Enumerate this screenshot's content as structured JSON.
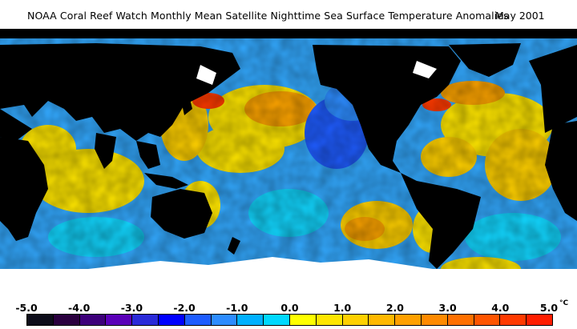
{
  "title": {
    "text": "NOAA Coral Reef Watch Monthly Mean Satellite Nighttime Sea Surface Temperature Anomalies",
    "date": "May 2001"
  },
  "scale": {
    "labels": [
      "-5.0",
      "-4.0",
      "-3.0",
      "-2.0",
      "-1.0",
      "0.0",
      "1.0",
      "2.0",
      "3.0",
      "4.0",
      "5.0"
    ],
    "unit": "°C",
    "colors": [
      "#0d0d1a",
      "#2a003f",
      "#3d007a",
      "#5a00b8",
      "#2b2bd8",
      "#0000ff",
      "#1e5cff",
      "#2d8cff",
      "#00b0ff",
      "#00d8ff",
      "#ffff00",
      "#ffe600",
      "#ffd000",
      "#ffb800",
      "#ffa000",
      "#ff8a00",
      "#ff7000",
      "#ff5500",
      "#ff3a00",
      "#ff1e00"
    ]
  },
  "map_colors": {
    "land": "#000000",
    "ice": "#ffffff",
    "ocean_cool": "#33a9ff",
    "ocean_deep_cool": "#1f5cff",
    "ocean_cyan": "#12d6ff",
    "ocean_warm": "#ffe600",
    "ocean_hot": "#ffa500",
    "ocean_very_hot": "#ff3a00"
  }
}
